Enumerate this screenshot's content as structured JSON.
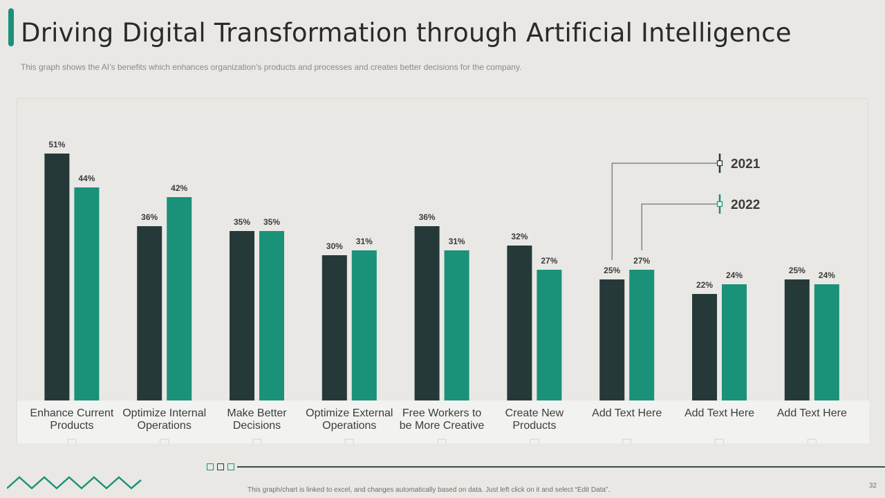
{
  "slide": {
    "title": "Driving Digital Transformation through Artificial Intelligence",
    "subtitle": "This graph shows the AI’s benefits which enhances organization’s products and processes and creates better decisions for the company.",
    "footer_note": "This graph/chart is linked to excel, and changes automatically based on data. Just left click on it and select “Edit Data”.",
    "page_number": "32",
    "accent_color": "#1a9179"
  },
  "chart_data": {
    "type": "bar",
    "categories": [
      [
        "Enhance Current",
        "Products"
      ],
      [
        "Optimize Internal",
        "Operations"
      ],
      [
        "Make Better",
        "Decisions"
      ],
      [
        "Optimize External",
        "Operations"
      ],
      [
        "Free Workers to",
        "be More Creative"
      ],
      [
        "Create New",
        "Products"
      ],
      [
        "Add Text Here"
      ],
      [
        "Add Text Here"
      ],
      [
        "Add Text Here"
      ]
    ],
    "series": [
      {
        "name": "2021",
        "color": "#263939",
        "values": [
          51,
          36,
          35,
          30,
          36,
          32,
          25,
          22,
          25
        ]
      },
      {
        "name": "2022",
        "color": "#1a9179",
        "values": [
          44,
          42,
          35,
          31,
          31,
          27,
          27,
          24,
          24
        ]
      }
    ],
    "value_suffix": "%",
    "ylim": [
      0,
      60
    ],
    "grid": false,
    "legend": "top-right, callouts"
  }
}
